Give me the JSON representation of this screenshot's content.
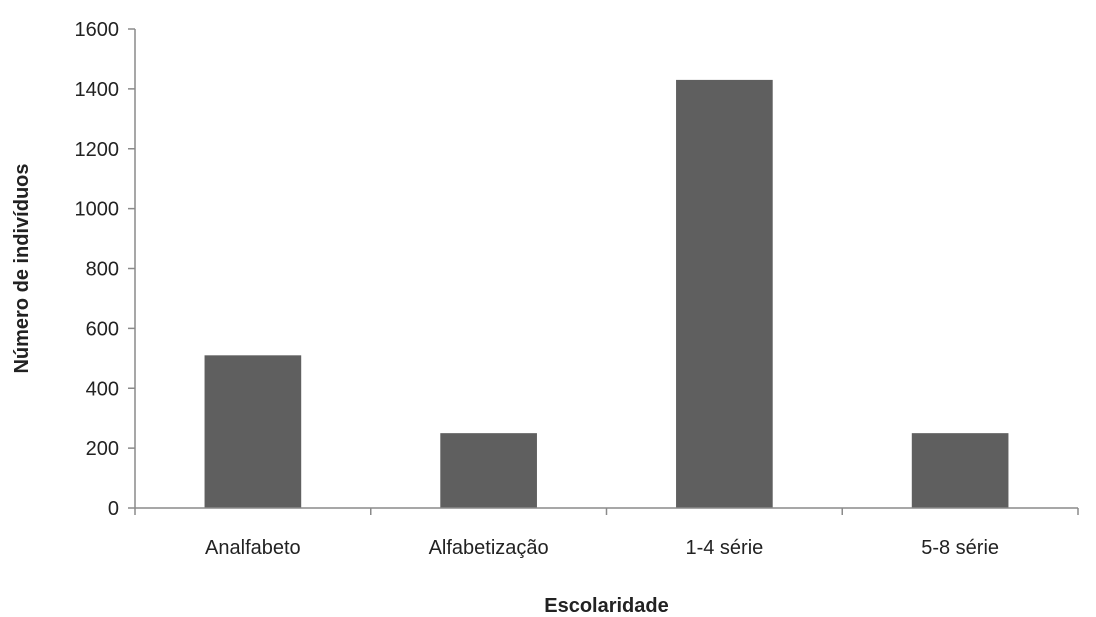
{
  "chart_data": {
    "type": "bar",
    "title": "",
    "xlabel": "Escolaridade",
    "ylabel": "Número de indivíduos",
    "categories": [
      "Analfabeto",
      "Alfabetização",
      "1-4 série",
      "5-8 série"
    ],
    "values": [
      510,
      250,
      1430,
      250
    ],
    "ylim": [
      0,
      1600
    ],
    "yticks": [
      0,
      200,
      400,
      600,
      800,
      1000,
      1200,
      1400,
      1600
    ],
    "bar_color": "#5f5f5f",
    "grid": false,
    "legend": "none"
  }
}
